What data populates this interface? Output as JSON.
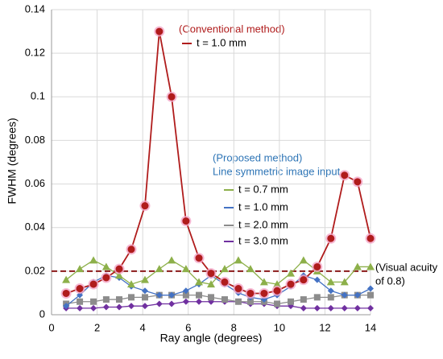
{
  "chart_data": {
    "type": "line",
    "xlabel": "Ray angle (degrees)",
    "ylabel": "FWHM (degrees)",
    "x": [
      0.64,
      1.24,
      1.84,
      2.4,
      2.97,
      3.5,
      4.1,
      4.73,
      5.27,
      5.9,
      6.47,
      7.0,
      7.6,
      8.2,
      8.73,
      9.33,
      9.9,
      10.5,
      11.06,
      11.66,
      12.26,
      12.86,
      13.43,
      14.0
    ],
    "series": [
      {
        "name": "t = 1.0 mm",
        "color": "#b01c1c",
        "marker": "circle",
        "values": [
          0.0098,
          0.012,
          0.014,
          0.017,
          0.021,
          0.03,
          0.05,
          0.13,
          0.1,
          0.043,
          0.026,
          0.019,
          0.015,
          0.012,
          0.0098,
          0.0098,
          0.011,
          0.014,
          0.016,
          0.022,
          0.035,
          0.064,
          0.061,
          0.035
        ]
      },
      {
        "name": "t = 0.7 mm",
        "color": "#8db04a",
        "marker": "triangle",
        "values": [
          0.016,
          0.021,
          0.025,
          0.022,
          0.018,
          0.014,
          0.016,
          0.021,
          0.025,
          0.021,
          0.015,
          0.014,
          0.021,
          0.025,
          0.021,
          0.015,
          0.014,
          0.019,
          0.025,
          0.02,
          0.015,
          0.015,
          0.022,
          0.022
        ]
      },
      {
        "name": "t = 1.0 mm",
        "color": "#4472c4",
        "marker": "diamond",
        "values": [
          0.004,
          0.009,
          0.015,
          0.018,
          0.017,
          0.013,
          0.011,
          0.009,
          0.009,
          0.011,
          0.014,
          0.018,
          0.014,
          0.01,
          0.008,
          0.007,
          0.009,
          0.013,
          0.018,
          0.016,
          0.011,
          0.009,
          0.009,
          0.012
        ]
      },
      {
        "name": "t = 2.0 mm",
        "color": "#8c8c8c",
        "marker": "square",
        "values": [
          0.005,
          0.006,
          0.006,
          0.007,
          0.007,
          0.008,
          0.008,
          0.009,
          0.009,
          0.009,
          0.009,
          0.008,
          0.007,
          0.006,
          0.006,
          0.006,
          0.005,
          0.006,
          0.007,
          0.008,
          0.008,
          0.009,
          0.009,
          0.009
        ]
      },
      {
        "name": "t = 3.0 mm",
        "color": "#7030a0",
        "marker": "diamond",
        "values": [
          0.003,
          0.003,
          0.003,
          0.0035,
          0.0035,
          0.004,
          0.004,
          0.005,
          0.005,
          0.006,
          0.006,
          0.006,
          0.006,
          0.006,
          0.005,
          0.005,
          0.004,
          0.004,
          0.003,
          0.003,
          0.003,
          0.003,
          0.003,
          0.003
        ]
      }
    ],
    "annotations": [
      "(Conventional method)",
      "(Proposed method)",
      "Line symmetric image input"
    ],
    "reference_line": {
      "value": 0.02,
      "color": "#8b1a1a",
      "label": [
        "(Visual acuity",
        "of 0.8)"
      ]
    },
    "xlim": [
      0,
      14
    ],
    "xticks": [
      0,
      2,
      4,
      6,
      8,
      10,
      12,
      14
    ],
    "ylim": [
      0,
      0.14
    ],
    "yticks": [
      0,
      0.02,
      0.04,
      0.06,
      0.08,
      0.1,
      0.12,
      0.14
    ],
    "grid": true
  }
}
